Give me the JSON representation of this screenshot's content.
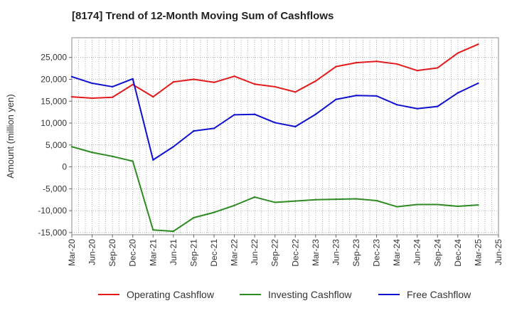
{
  "chart_data": {
    "type": "line",
    "title": "[8174]  Trend of 12-Month Moving Sum of Cashflows",
    "ylabel": "Amount (million yen)",
    "xlabel": "",
    "ylim": [
      -15500,
      29500
    ],
    "yticks": [
      25000,
      20000,
      15000,
      10000,
      5000,
      0,
      -5000,
      -10000,
      -15000
    ],
    "ytick_labels": [
      "25,000",
      "20,000",
      "15,000",
      "10,000",
      "5,000",
      "0",
      "-5,000",
      "-10,000",
      "-15,000"
    ],
    "x_tick_labels": [
      "Mar-20",
      "Jun-20",
      "Sep-20",
      "Dec-20",
      "Mar-21",
      "Jun-21",
      "Sep-21",
      "Dec-21",
      "Mar-22",
      "Jun-22",
      "Sep-22",
      "Dec-22",
      "Mar-23",
      "Jun-23",
      "Sep-23",
      "Dec-23",
      "Mar-24",
      "Jun-24",
      "Sep-24",
      "Dec-24",
      "Mar-25",
      "Jun-25"
    ],
    "categories": [
      "Mar-20",
      "Jun-20",
      "Sep-20",
      "Dec-20",
      "Mar-21",
      "Jun-21",
      "Sep-21",
      "Dec-21",
      "Mar-22",
      "Jun-22",
      "Sep-22",
      "Dec-22",
      "Mar-23",
      "Jun-23",
      "Sep-23",
      "Dec-23",
      "Mar-24",
      "Jun-24",
      "Sep-24",
      "Dec-24",
      "Mar-25"
    ],
    "grid": true,
    "legend_position": "bottom",
    "series": [
      {
        "name": "Operating Cashflow",
        "color": "#e31a1c",
        "values": [
          16000,
          15700,
          15900,
          18800,
          16000,
          19400,
          20000,
          19300,
          20700,
          18900,
          18300,
          17100,
          19600,
          22900,
          23800,
          24100,
          23500,
          22000,
          22600,
          26000,
          28000
        ]
      },
      {
        "name": "Investing Cashflow",
        "color": "#2e8b22",
        "values": [
          4600,
          3300,
          2400,
          1300,
          -14400,
          -14700,
          -11600,
          -10400,
          -8800,
          -6900,
          -8100,
          -7800,
          -7500,
          -7400,
          -7300,
          -7700,
          -9100,
          -8600,
          -8600,
          -9000,
          -8700
        ]
      },
      {
        "name": "Free Cashflow",
        "color": "#1010d0",
        "values": [
          20600,
          19100,
          18300,
          20100,
          1600,
          4600,
          8200,
          8800,
          11900,
          12000,
          10100,
          9200,
          12000,
          15400,
          16300,
          16200,
          14200,
          13300,
          13800,
          16900,
          19100
        ]
      }
    ]
  }
}
